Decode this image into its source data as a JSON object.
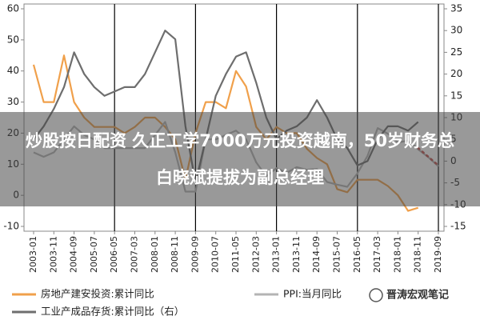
{
  "chart_data": {
    "type": "line",
    "categories": [
      "2003-01",
      null,
      "2003-11",
      null,
      "2004-09",
      null,
      "2005-07",
      null,
      "2006-05",
      null,
      "2007-03",
      null,
      "2008-01",
      null,
      "2008-11",
      null,
      "2009-09",
      null,
      "2010-07",
      null,
      "2011-05",
      null,
      "2012-03",
      null,
      "2013-01",
      null,
      "2013-11",
      null,
      "2014-09",
      null,
      "2015-07",
      null,
      "2016-05",
      null,
      "2017-03",
      null,
      "2018-01",
      null,
      "2018-11",
      null,
      "2019-09"
    ],
    "series": [
      {
        "name": "房地产建安投资:累计同比",
        "color": "#f0a04b",
        "values": [
          42,
          30,
          30,
          45,
          30,
          25,
          22,
          22,
          22,
          20,
          22,
          25,
          25,
          22,
          18,
          5,
          20,
          30,
          30,
          28,
          40,
          35,
          22,
          18,
          22,
          20,
          20,
          15,
          12,
          10,
          2,
          1,
          5,
          5,
          5,
          3,
          0,
          -5,
          -4,
          null,
          null
        ]
      },
      {
        "name": "PPI:当月同比",
        "color": "#b4b4b4",
        "axis": "y2",
        "values": [
          2,
          1,
          2,
          5,
          8,
          6,
          5,
          3,
          3,
          3,
          3,
          3,
          6,
          9,
          2,
          -7,
          -7,
          5,
          5,
          6,
          7,
          5,
          -0.3,
          -3.5,
          -1.6,
          -2.7,
          -1.4,
          -2,
          -1.8,
          -4.8,
          -5.4,
          -5.9,
          -2.8,
          1.2,
          7.6,
          6.3,
          4.3,
          4.7,
          2.7,
          0.9,
          -1.2
        ]
      },
      {
        "name": "工业产成品存货:累计同比（右）",
        "color": "#6e6e6e",
        "axis": "y2",
        "values": [
          5,
          8,
          12,
          17,
          25,
          20,
          17,
          15,
          16,
          17,
          17,
          20,
          25,
          30,
          28,
          8,
          -5,
          5,
          15,
          20,
          24,
          25,
          18,
          10,
          5,
          7,
          8,
          10,
          14,
          10,
          5,
          3,
          -1,
          0,
          5,
          8,
          8,
          7,
          9,
          null,
          null
        ]
      },
      {
        "color": "#c0504d",
        "axis": "y2",
        "dotted": true,
        "values": [
          null,
          null,
          null,
          null,
          null,
          null,
          null,
          null,
          null,
          null,
          null,
          null,
          null,
          null,
          null,
          null,
          null,
          null,
          null,
          null,
          null,
          null,
          null,
          null,
          null,
          null,
          null,
          null,
          null,
          null,
          null,
          null,
          null,
          null,
          null,
          null,
          null,
          null,
          3,
          1,
          -1
        ]
      }
    ],
    "ylim": [
      -10,
      60
    ],
    "yticks": [
      -10,
      0,
      10,
      20,
      30,
      40,
      50,
      60
    ],
    "y2lim": [
      -15,
      35
    ],
    "y2ticks": [
      -15,
      -10,
      -5,
      0,
      5,
      10,
      15,
      20,
      25,
      30,
      35
    ],
    "period_lines": [
      8,
      16,
      24,
      32,
      40
    ],
    "watermark": "晋涛宏观笔记"
  },
  "headline": "炒股按日配资 久正工学7000万元投资越南，50岁财务总白晓斌提拔为副总经理"
}
